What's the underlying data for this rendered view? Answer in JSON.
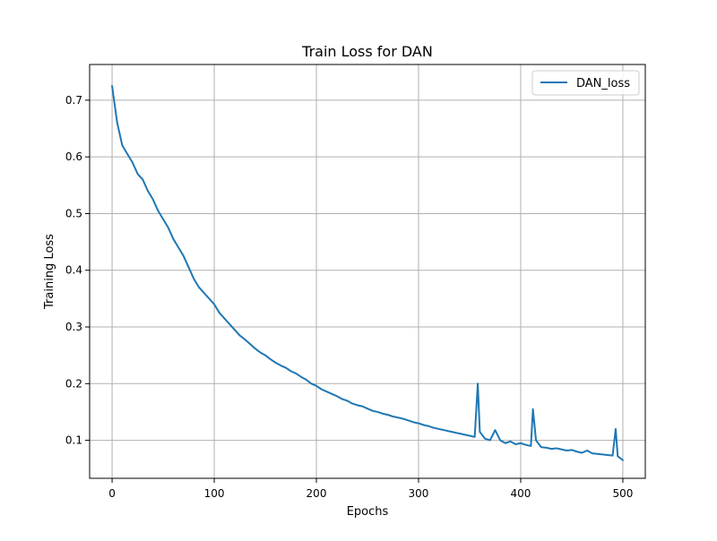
{
  "chart_data": {
    "type": "line",
    "title": "Train Loss for DAN",
    "xlabel": "Epochs",
    "ylabel": "Training Loss",
    "xlim": [
      -22,
      522
    ],
    "ylim": [
      0.033,
      0.763
    ],
    "xticks": [
      0,
      100,
      200,
      300,
      400,
      500
    ],
    "yticks": [
      0.1,
      0.2,
      0.3,
      0.4,
      0.5,
      0.6,
      0.7
    ],
    "xtick_labels": [
      "0",
      "100",
      "200",
      "300",
      "400",
      "500"
    ],
    "ytick_labels": [
      "0.1",
      "0.2",
      "0.3",
      "0.4",
      "0.5",
      "0.6",
      "0.7"
    ],
    "grid": true,
    "legend": {
      "position": "top-right"
    },
    "series": [
      {
        "name": "DAN_loss",
        "color": "#1f77b4",
        "x": [
          0,
          5,
          10,
          15,
          20,
          25,
          30,
          35,
          40,
          45,
          50,
          55,
          60,
          65,
          70,
          75,
          80,
          85,
          90,
          95,
          100,
          105,
          110,
          115,
          120,
          125,
          130,
          135,
          140,
          145,
          150,
          155,
          160,
          165,
          170,
          175,
          180,
          185,
          190,
          195,
          200,
          205,
          210,
          215,
          220,
          225,
          230,
          235,
          240,
          245,
          250,
          255,
          260,
          265,
          270,
          275,
          280,
          285,
          290,
          295,
          300,
          305,
          310,
          315,
          320,
          325,
          330,
          335,
          340,
          345,
          350,
          355,
          358,
          360,
          365,
          370,
          375,
          380,
          385,
          390,
          395,
          400,
          405,
          410,
          412,
          415,
          420,
          425,
          430,
          435,
          440,
          445,
          450,
          455,
          460,
          465,
          470,
          475,
          480,
          485,
          490,
          493,
          495,
          500
        ],
        "values": [
          0.725,
          0.66,
          0.62,
          0.605,
          0.59,
          0.57,
          0.56,
          0.54,
          0.525,
          0.505,
          0.49,
          0.475,
          0.455,
          0.44,
          0.425,
          0.405,
          0.385,
          0.37,
          0.36,
          0.35,
          0.34,
          0.325,
          0.315,
          0.305,
          0.295,
          0.285,
          0.278,
          0.27,
          0.262,
          0.255,
          0.25,
          0.243,
          0.237,
          0.232,
          0.228,
          0.222,
          0.218,
          0.212,
          0.207,
          0.2,
          0.196,
          0.19,
          0.186,
          0.182,
          0.178,
          0.173,
          0.17,
          0.165,
          0.162,
          0.16,
          0.156,
          0.152,
          0.15,
          0.147,
          0.145,
          0.142,
          0.14,
          0.138,
          0.135,
          0.132,
          0.13,
          0.127,
          0.125,
          0.122,
          0.12,
          0.118,
          0.116,
          0.114,
          0.112,
          0.11,
          0.108,
          0.106,
          0.2,
          0.115,
          0.103,
          0.1,
          0.118,
          0.1,
          0.095,
          0.098,
          0.093,
          0.095,
          0.092,
          0.09,
          0.155,
          0.1,
          0.088,
          0.087,
          0.085,
          0.086,
          0.084,
          0.082,
          0.083,
          0.08,
          0.078,
          0.082,
          0.077,
          0.076,
          0.075,
          0.074,
          0.073,
          0.12,
          0.072,
          0.065
        ]
      }
    ]
  }
}
